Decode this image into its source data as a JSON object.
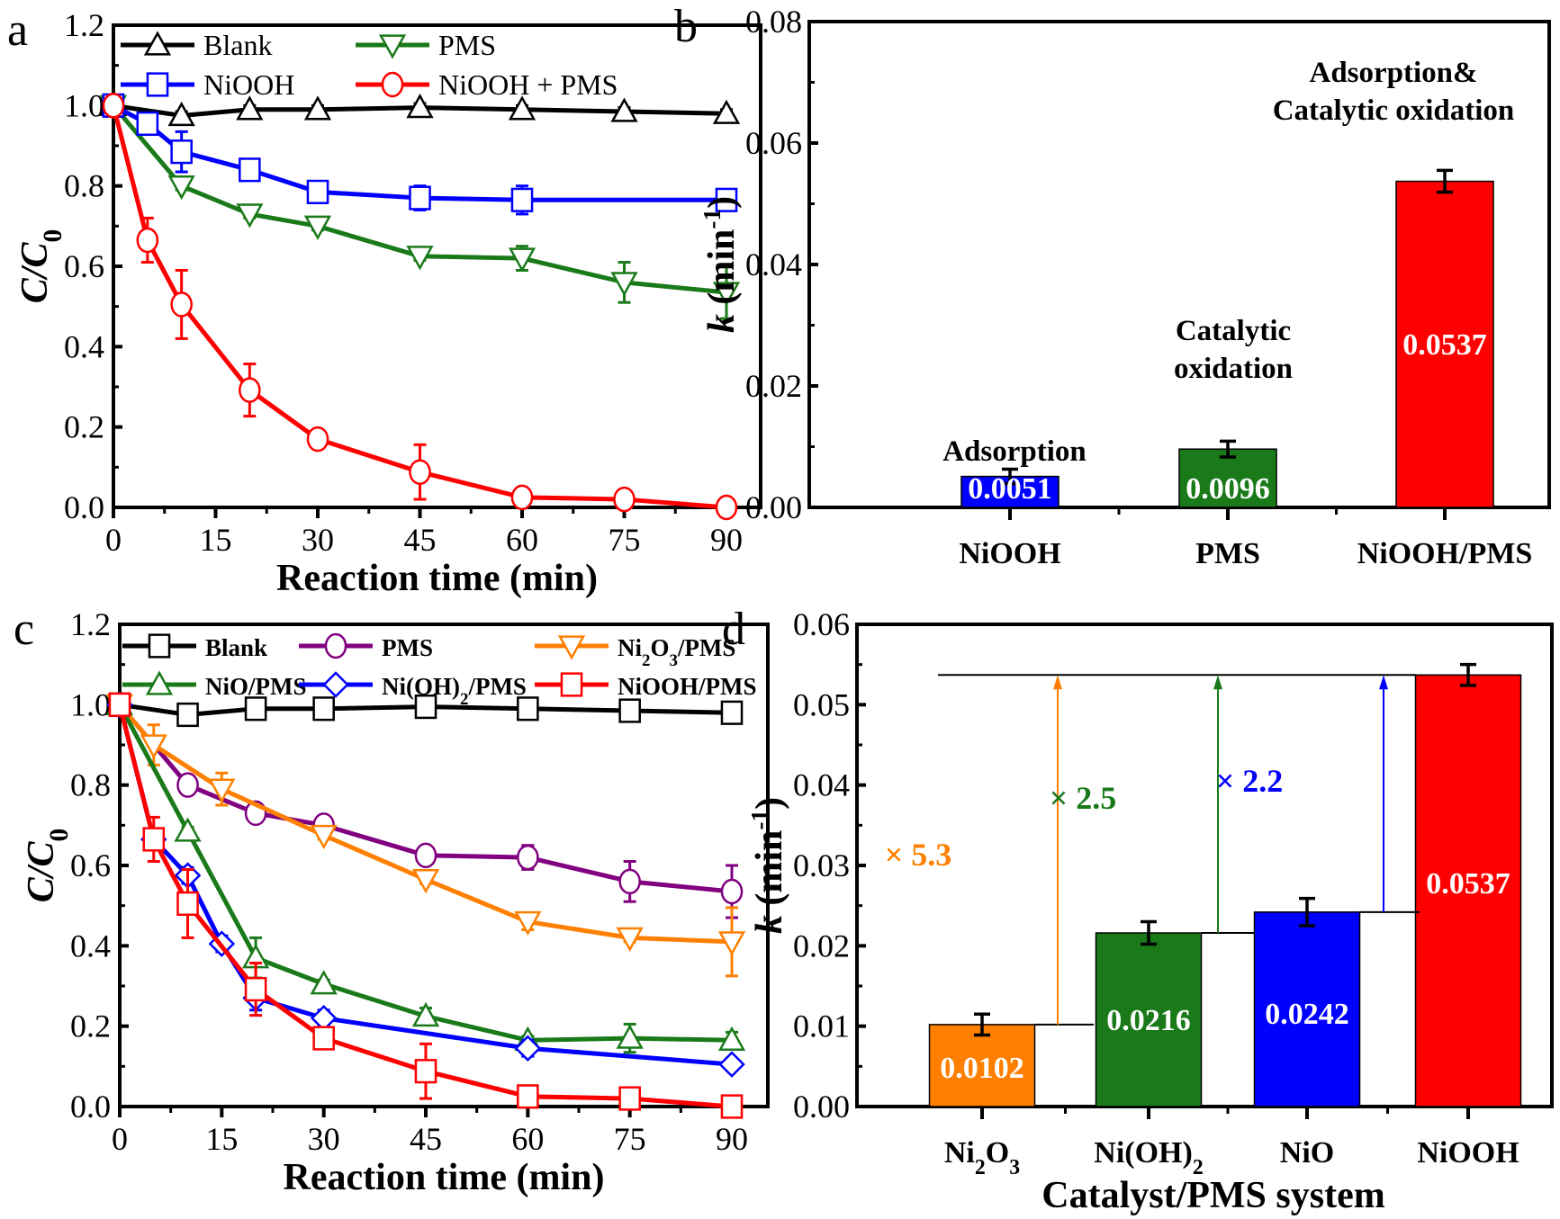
{
  "chart_data": [
    {
      "panel": "a",
      "type": "line",
      "xlabel": "Reaction time (min)",
      "ylabel": "C/C0",
      "xlim": [
        0,
        90
      ],
      "ylim": [
        0,
        1.2
      ],
      "xticks": [
        "0",
        "15",
        "30",
        "45",
        "60",
        "75",
        "90"
      ],
      "yticks": [
        "0.0",
        "0.2",
        "0.4",
        "0.6",
        "0.8",
        "1.0",
        "1.2"
      ],
      "legend": "top",
      "series": [
        {
          "name": "Blank",
          "color": "#000000",
          "marker": "triangle-up",
          "x": [
            0,
            10,
            20,
            30,
            45,
            60,
            75,
            90
          ],
          "y": [
            1.0,
            0.975,
            0.99,
            0.99,
            0.995,
            0.99,
            0.985,
            0.98
          ],
          "err": [
            0.01,
            0.01,
            0.01,
            0.01,
            0.01,
            0.01,
            0.01,
            0.01
          ]
        },
        {
          "name": "PMS",
          "color": "#1a7a1a",
          "marker": "triangle-down",
          "x": [
            0,
            10,
            20,
            30,
            45,
            60,
            75,
            90
          ],
          "y": [
            1.0,
            0.8,
            0.73,
            0.7,
            0.625,
            0.62,
            0.56,
            0.535
          ],
          "err": [
            0.01,
            0.01,
            0.01,
            0.01,
            0.01,
            0.03,
            0.05,
            0.065
          ]
        },
        {
          "name": "NiOOH",
          "color": "#0000ff",
          "marker": "square",
          "x": [
            0,
            5,
            10,
            20,
            30,
            45,
            60,
            90
          ],
          "y": [
            1.0,
            0.955,
            0.885,
            0.84,
            0.785,
            0.77,
            0.765,
            0.765
          ],
          "err": [
            0.01,
            0.01,
            0.05,
            0.01,
            0.02,
            0.03,
            0.035,
            0.01
          ]
        },
        {
          "name": "NiOOH + PMS",
          "color": "#ff0000",
          "marker": "circle",
          "x": [
            0,
            5,
            10,
            20,
            30,
            45,
            60,
            75,
            90
          ],
          "y": [
            1.0,
            0.665,
            0.505,
            0.292,
            0.17,
            0.088,
            0.025,
            0.02,
            0.0
          ],
          "err": [
            0.01,
            0.055,
            0.085,
            0.065,
            0.02,
            0.068,
            0.02,
            0.01,
            0.0
          ]
        }
      ]
    },
    {
      "panel": "b",
      "type": "bar",
      "ylabel": "k (min-1)",
      "ylim": [
        0,
        0.08
      ],
      "yticks": [
        "0.00",
        "0.02",
        "0.04",
        "0.06",
        "0.08"
      ],
      "categories": [
        "NiOOH",
        "PMS",
        "NiOOH/PMS"
      ],
      "values": [
        0.0051,
        0.0096,
        0.0537
      ],
      "errors": [
        0.0012,
        0.0013,
        0.0018
      ],
      "colors": [
        "#0000ff",
        "#1a7a1a",
        "#ff0000"
      ],
      "value_labels": [
        "0.0051",
        "0.0096",
        "0.0537"
      ],
      "annotations": [
        {
          "lines": [
            "Adsorption"
          ]
        },
        {
          "lines": [
            "Catalytic",
            "oxidation"
          ]
        },
        {
          "lines": [
            "Adsorption&",
            "Catalytic oxidation"
          ]
        }
      ]
    },
    {
      "panel": "c",
      "type": "line",
      "xlabel": "Reaction time (min)",
      "ylabel": "C/C0",
      "xlim": [
        0,
        90
      ],
      "ylim": [
        0,
        1.2
      ],
      "xticks": [
        "0",
        "15",
        "30",
        "45",
        "60",
        "75",
        "90"
      ],
      "yticks": [
        "0.0",
        "0.2",
        "0.4",
        "0.6",
        "0.8",
        "1.0",
        "1.2"
      ],
      "legend": "top",
      "series": [
        {
          "name": "Blank",
          "color": "#000000",
          "marker": "square",
          "x": [
            0,
            10,
            20,
            30,
            45,
            60,
            75,
            90
          ],
          "y": [
            1.0,
            0.975,
            0.99,
            0.99,
            0.995,
            0.99,
            0.985,
            0.98
          ],
          "err": [
            0.01,
            0.01,
            0.01,
            0.01,
            0.01,
            0.01,
            0.01,
            0.01
          ]
        },
        {
          "name": "PMS",
          "color": "#800080",
          "marker": "circle",
          "x": [
            0,
            10,
            20,
            30,
            45,
            60,
            75,
            90
          ],
          "y": [
            1.0,
            0.8,
            0.73,
            0.7,
            0.625,
            0.62,
            0.56,
            0.535
          ],
          "err": [
            0.01,
            0.01,
            0.01,
            0.01,
            0.01,
            0.03,
            0.05,
            0.065
          ]
        },
        {
          "name": "Ni2O3/PMS",
          "label_html": "Ni₂O₃/PMS",
          "color": "#ff8000",
          "marker": "triangle-down",
          "x": [
            0,
            5,
            15,
            30,
            45,
            60,
            75,
            90
          ],
          "y": [
            1.0,
            0.9,
            0.79,
            0.675,
            0.565,
            0.46,
            0.42,
            0.41
          ],
          "err": [
            0.01,
            0.05,
            0.04,
            0.01,
            0.01,
            0.02,
            0.01,
            0.085
          ]
        },
        {
          "name": "NiO/PMS",
          "color": "#1a7a1a",
          "marker": "triangle-up",
          "x": [
            0,
            10,
            20,
            30,
            45,
            60,
            75,
            90
          ],
          "y": [
            1.0,
            0.685,
            0.37,
            0.305,
            0.225,
            0.165,
            0.17,
            0.165
          ],
          "err": [
            0.01,
            0.01,
            0.05,
            0.01,
            0.02,
            0.01,
            0.035,
            0.02
          ]
        },
        {
          "name": "Ni(OH)2/PMS",
          "label_html": "Ni(OH)₂/PMS",
          "color": "#0000ff",
          "marker": "diamond",
          "x": [
            0,
            5,
            10,
            15,
            20,
            30,
            60,
            90
          ],
          "y": [
            1.0,
            0.665,
            0.575,
            0.405,
            0.27,
            0.22,
            0.145,
            0.105
          ],
          "err": [
            0.01,
            0.02,
            0.02,
            0.02,
            0.03,
            0.02,
            0.02,
            0.015
          ]
        },
        {
          "name": "NiOOH/PMS",
          "color": "#ff0000",
          "marker": "square",
          "x": [
            0,
            5,
            10,
            20,
            30,
            45,
            60,
            75,
            90
          ],
          "y": [
            1.0,
            0.665,
            0.505,
            0.292,
            0.17,
            0.088,
            0.025,
            0.02,
            0.0
          ],
          "err": [
            0.01,
            0.055,
            0.085,
            0.065,
            0.02,
            0.068,
            0.02,
            0.01,
            0.0
          ]
        }
      ]
    },
    {
      "panel": "d",
      "type": "bar",
      "xlabel": "Catalyst/PMS system",
      "ylabel": "k (min-1)",
      "ylim": [
        0,
        0.06
      ],
      "yticks": [
        "0.00",
        "0.01",
        "0.02",
        "0.03",
        "0.04",
        "0.05",
        "0.06"
      ],
      "categories": [
        "Ni2O3",
        "Ni(OH)2",
        "NiO",
        "NiOOH"
      ],
      "category_labels": [
        "Ni₂O₃",
        "Ni(OH)₂",
        "NiO",
        "NiOOH"
      ],
      "values": [
        0.0102,
        0.0216,
        0.0242,
        0.0537
      ],
      "errors": [
        0.0013,
        0.0014,
        0.0017,
        0.0013
      ],
      "colors": [
        "#ff8000",
        "#1a7a1a",
        "#0000ff",
        "#ff0000"
      ],
      "value_labels": [
        "0.0102",
        "0.0216",
        "0.0242",
        "0.0537"
      ],
      "enhancement": [
        {
          "label": "× 5.3",
          "color": "#ff8000",
          "from": 0
        },
        {
          "label": "× 2.5",
          "color": "#1a7a1a",
          "from": 1
        },
        {
          "label": "× 2.2",
          "color": "#0000ff",
          "from": 2
        }
      ]
    }
  ]
}
